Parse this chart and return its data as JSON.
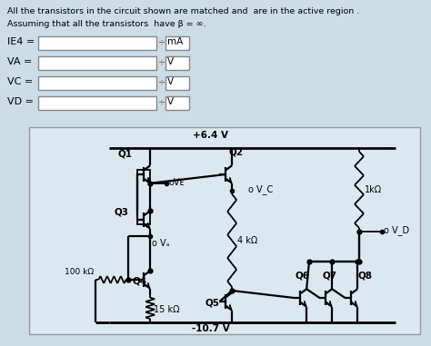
{
  "title_line1": "All the transistors in the circuit shown are matched and  are in the active region .",
  "title_line2": "Assuming that all the transistors  have β = ∞.",
  "labels": [
    "IE4 =",
    "VA =",
    "VC =",
    "VD ="
  ],
  "units": [
    "mA",
    "V",
    "V",
    "V"
  ],
  "bg_color": "#ccdde8",
  "circuit_bg": "#dce8f0",
  "vplus": "+6.4 V",
  "vminus": "-10.7 V",
  "lw": 1.3
}
